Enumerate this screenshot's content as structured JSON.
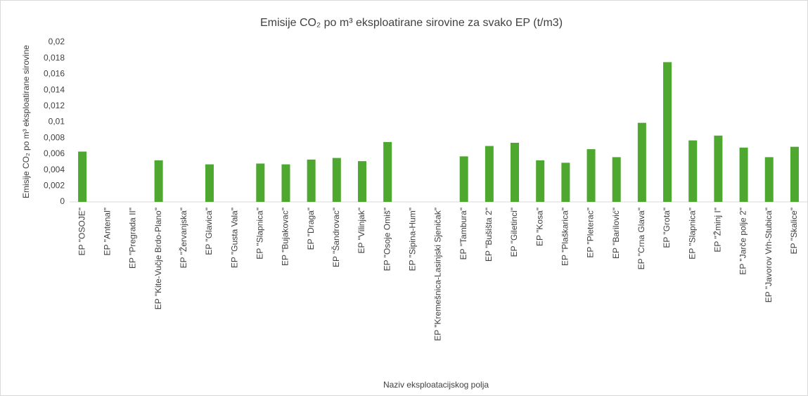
{
  "chart_data": {
    "type": "bar",
    "title": "Emisije CO₂ po m³ eksploatirane sirovine za svako EP (t/m3)",
    "y_label": "Emisije CO₂ po m³ eksploatirane sirovine",
    "x_label": "Naziv eksploatacijskog polja",
    "categories": [
      "EP \"OSOJE\"",
      "EP \"Antenal\"",
      "EP \"Pregrada II\"",
      "EP \"Kite-Vučje Brdo-Plano\"",
      "EP \"Žervanjska\"",
      "EP \"Glavica\"",
      "EP \"Gusta Vala\"",
      "EP \"Slapnica\"",
      "EP \"Bujakovac\"",
      "EP \"Draga\"",
      "EP \"Šandrovac\"",
      "EP \"Vilinjak\"",
      "EP \"Osoje Omiš\"",
      "EP \"Sipina-Hum\"",
      "EP \"Kremešnica-Lasinjski Sjeničak\"",
      "EP \"Tambura\"",
      "EP \"Bušišta 2\"",
      "EP \"Giletinci\"",
      "EP \"Kosa\"",
      "EP \"Plaškarica\"",
      "EP \"Pleterac\"",
      "EP \"Barilović\"",
      "EP \"Crna Glava\"",
      "EP \"Grota\"",
      "EP \"Slapnica\"",
      "EP \"Žminj I\"",
      "EP \"Jarče polje 2\"",
      "EP \"Javorov Vrh-Stubica\"",
      "EP \"Skalice\""
    ],
    "values": [
      0.0063,
      0,
      0,
      0.0052,
      0,
      0.0047,
      0,
      0.0048,
      0.0047,
      0.0053,
      0.0055,
      0.0051,
      0.0075,
      0,
      0,
      0.0057,
      0.007,
      0.0074,
      0.0052,
      0.0049,
      0.0066,
      0.0056,
      0.0099,
      0.0175,
      0.0077,
      0.0083,
      0.0068,
      0.0056,
      0.0069
    ],
    "color": "#4ea72e",
    "ylim": [
      0,
      0.02
    ],
    "yticks": [
      0,
      {
        "value": 0.002,
        "label": "0,002"
      },
      {
        "value": 0.004,
        "label": "0,004"
      },
      {
        "value": 0.006,
        "label": "0,006"
      },
      {
        "value": 0.008,
        "label": "0,008"
      },
      {
        "value": 0.01,
        "label": "0,01"
      },
      {
        "value": 0.012,
        "label": "0,012"
      },
      {
        "value": 0.014,
        "label": "0,014"
      },
      {
        "value": 0.016,
        "label": "0,016"
      },
      {
        "value": 0.018,
        "label": "0,018"
      },
      {
        "value": 0.02,
        "label": "0,02"
      }
    ],
    "grid": false
  }
}
